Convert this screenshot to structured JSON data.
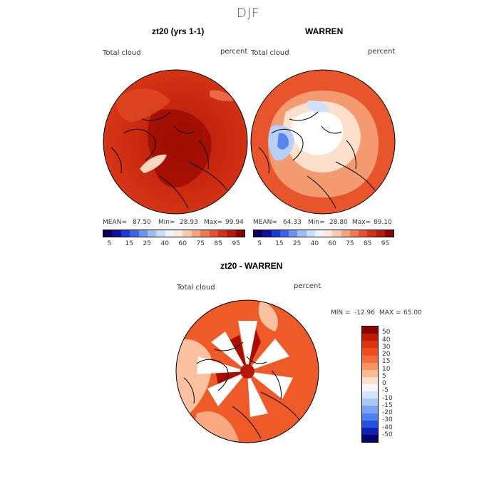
{
  "figure_title": "DJF",
  "panels": [
    {
      "title": "zt20 (yrs 1-1)",
      "variable": "Total cloud",
      "units": "percent",
      "stats": {
        "mean_label": "MEAN=",
        "mean": "87.50",
        "min_label": "Min=",
        "min": "28.93",
        "max_label": "Max=",
        "max": "99.94"
      }
    },
    {
      "title": "WARREN",
      "variable": "Total cloud",
      "units": "percent",
      "stats": {
        "mean_label": "MEAN=",
        "mean": "64.33",
        "min_label": "Min=",
        "min": "28.80",
        "max_label": "Max=",
        "max": "89.10"
      }
    },
    {
      "title": "zt20 - WARREN",
      "variable": "Total cloud",
      "units": "percent",
      "stats": {
        "min_label": "MIN =",
        "min": "-12.96",
        "max_label": "MAX =",
        "max": "65.00"
      }
    }
  ],
  "colorbar_top": {
    "labels": [
      "5",
      "15",
      "25",
      "40",
      "60",
      "75",
      "85",
      "95"
    ],
    "colors": [
      "#08005e",
      "#1010a0",
      "#1a3ad8",
      "#3a66ee",
      "#6a94f4",
      "#9cbcf8",
      "#c8dcfa",
      "#eef2fb",
      "#fde8dc",
      "#fbcaa8",
      "#f7a47a",
      "#f27850",
      "#e8502e",
      "#d63016",
      "#b81808",
      "#8a0000"
    ]
  },
  "colorbar_diff": {
    "labels": [
      "50",
      "40",
      "30",
      "20",
      "15",
      "10",
      "5",
      "0",
      "-5",
      "-10",
      "-15",
      "-20",
      "-30",
      "-40",
      "-50"
    ],
    "colors": [
      "#8a0000",
      "#c01a06",
      "#dc3410",
      "#ee4e1e",
      "#f46c38",
      "#f89460",
      "#fbba92",
      "#fde0cc",
      "#f7f7fb",
      "#d4e4fa",
      "#a8c8f6",
      "#7aa4f2",
      "#4e7ef0",
      "#2452e0",
      "#0c22b4",
      "#04046e"
    ]
  }
}
